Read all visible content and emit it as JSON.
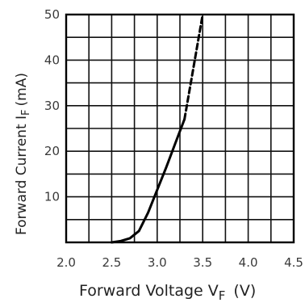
{
  "chart_data": {
    "type": "line",
    "xlabel": "Forward Voltage V",
    "xlabel_sub": "F",
    "xlabel_unit": "(V)",
    "ylabel": "Forward Current I",
    "ylabel_sub": "F",
    "ylabel_unit": "(mA)",
    "xlim": [
      2.0,
      4.5
    ],
    "ylim": [
      0,
      50
    ],
    "x_ticks": [
      "2.0",
      "2.5",
      "3.0",
      "3.5",
      "4.0",
      "4.5"
    ],
    "y_ticks": [
      "10",
      "20",
      "30",
      "40",
      "50"
    ],
    "grid": true,
    "series": [
      {
        "style": "solid",
        "x": [
          2.5,
          2.6,
          2.7,
          2.8,
          2.9,
          3.0,
          3.1,
          3.2,
          3.3
        ],
        "y": [
          0,
          0.3,
          0.9,
          2.5,
          6.5,
          11.5,
          16.5,
          21.8,
          27.0
        ]
      },
      {
        "style": "dashed",
        "x": [
          3.3,
          3.4,
          3.5
        ],
        "y": [
          27.0,
          38.5,
          50.0
        ]
      }
    ]
  }
}
